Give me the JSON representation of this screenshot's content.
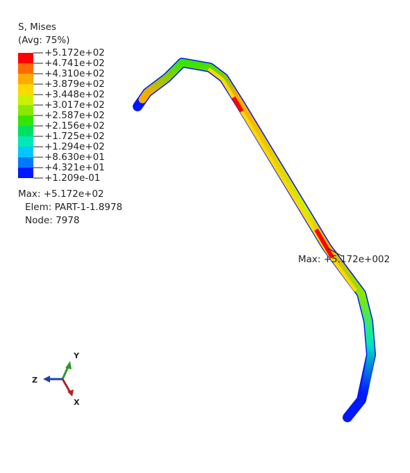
{
  "legend": {
    "title": "S, Mises",
    "subtitle": "(Avg: 75%)",
    "labels": [
      "+5.172e+02",
      "+4.741e+02",
      "+4.310e+02",
      "+3.879e+02",
      "+3.448e+02",
      "+3.017e+02",
      "+2.587e+02",
      "+2.156e+02",
      "+1.725e+02",
      "+1.294e+02",
      "+8.630e+01",
      "+4.321e+01",
      "+1.209e-01"
    ],
    "colors": [
      "#ff0000",
      "#ff6a00",
      "#ffaa00",
      "#ffd800",
      "#ccf000",
      "#88e800",
      "#33e600",
      "#00e060",
      "#00e8b8",
      "#00c8ff",
      "#0078ff",
      "#0018ff"
    ]
  },
  "max_info": {
    "max": "Max: +5.172e+02",
    "elem": "Elem: PART-1-1.8978",
    "node": "Node: 7978"
  },
  "annotation": "Max: +5.172e+002",
  "triad": {
    "y": "Y",
    "z": "Z",
    "x": "X"
  }
}
